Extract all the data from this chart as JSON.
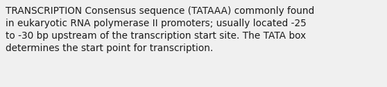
{
  "text_line1": "TRANSCRIPTION Consensus sequence (TATAAA) commonly found",
  "text_line2": "in eukaryotic RNA polymerase II promoters; usually located -25",
  "text_line3": "to -30 bp upstream of the transcription start site. The TATA box",
  "text_line4": "determines the start point for transcription.",
  "background_color": "#f0f0f0",
  "text_color": "#1a1a1a",
  "font_size": 9.8,
  "fig_width": 5.58,
  "fig_height": 1.26,
  "dpi": 100
}
